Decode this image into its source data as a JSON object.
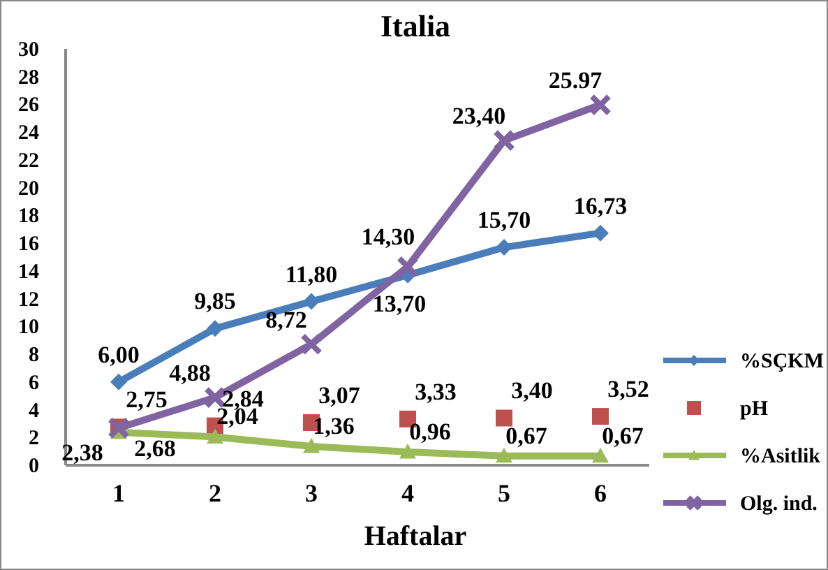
{
  "chart_data": {
    "type": "line",
    "title": "Italia",
    "xlabel": "Haftalar",
    "categories": [
      "1",
      "2",
      "3",
      "4",
      "5",
      "6"
    ],
    "ylim": [
      0,
      30
    ],
    "yticks": [
      0,
      2,
      4,
      6,
      8,
      10,
      12,
      14,
      16,
      18,
      20,
      22,
      24,
      26,
      28,
      30
    ],
    "grid": false,
    "legend": "right",
    "series": [
      {
        "name": "%SÇKM",
        "color": "#4a7ebb",
        "marker": "diamond",
        "values": [
          6.0,
          9.85,
          11.8,
          13.7,
          15.7,
          16.73
        ],
        "value_labels": [
          "6,00",
          "9,85",
          "11,80",
          "13,70",
          "15,70",
          "16,73"
        ]
      },
      {
        "name": "pH",
        "type": "scatter",
        "color": "#c0504d",
        "marker": "square",
        "values": [
          2.75,
          2.84,
          3.07,
          3.33,
          3.4,
          3.52
        ],
        "value_labels": [
          "2,75",
          "2,84",
          "3,07",
          "3,33",
          "3,40",
          "3,52"
        ]
      },
      {
        "name": "%Asitlik",
        "color": "#9bbb59",
        "marker": "triangle",
        "values": [
          2.38,
          2.04,
          1.36,
          0.96,
          0.67,
          0.67
        ],
        "value_labels": [
          "2,38",
          "2,04",
          "1,36",
          "0,96",
          "0,67",
          "0,67"
        ]
      },
      {
        "name": "Olg. ind.",
        "color": "#8064a2",
        "marker": "cross",
        "values": [
          2.68,
          4.88,
          8.72,
          14.3,
          23.4,
          25.97
        ],
        "value_labels": [
          "2,68",
          "4,88",
          "8,72",
          "14,30",
          "23,40",
          "25.97"
        ]
      }
    ]
  }
}
